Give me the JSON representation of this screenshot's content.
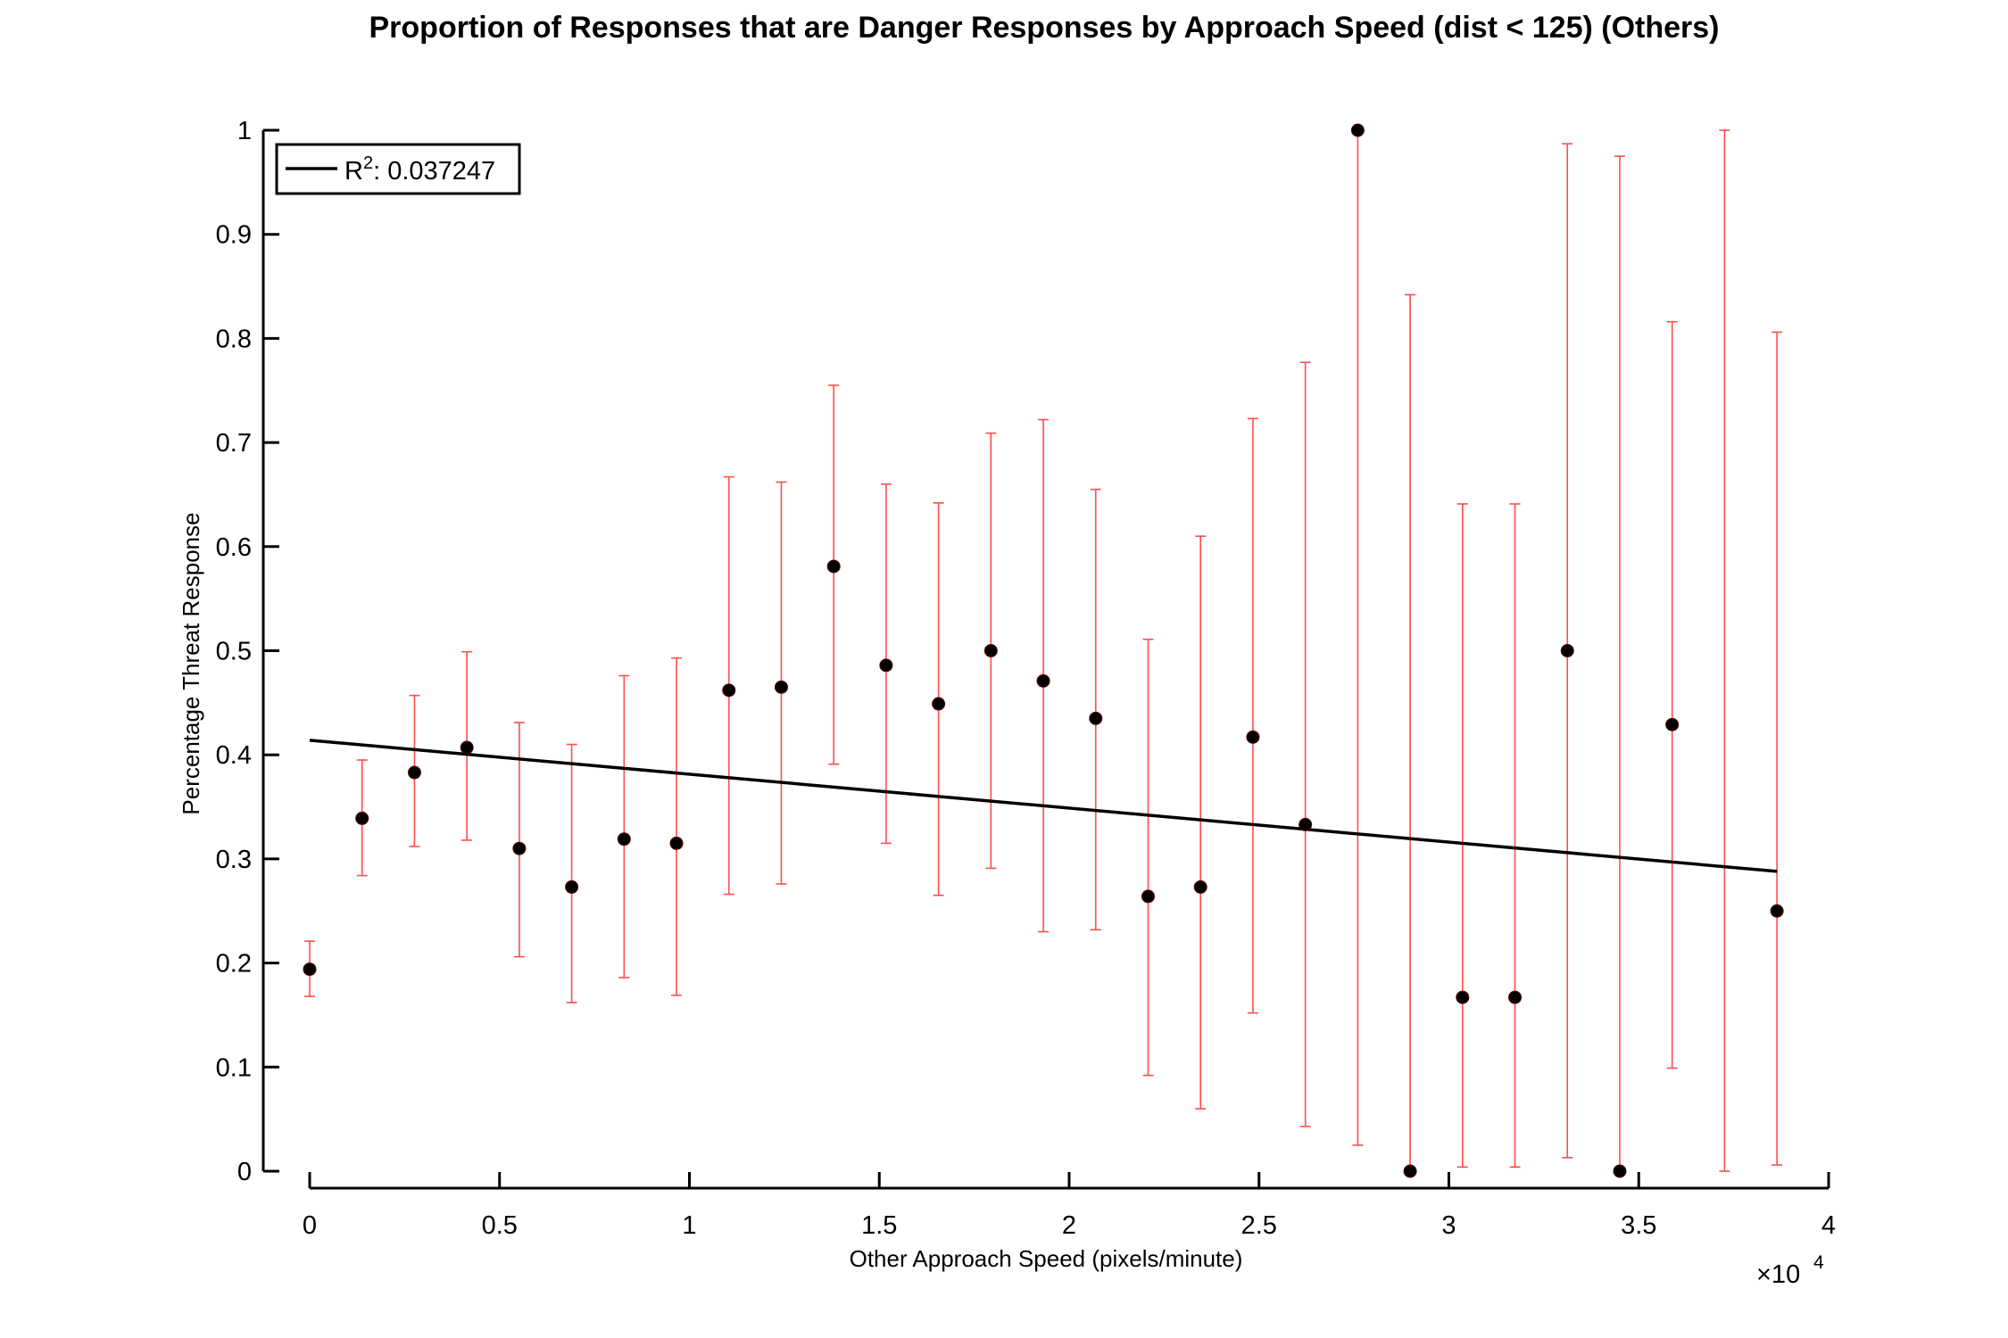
{
  "chart_data": {
    "type": "scatter",
    "title": "Proportion of Responses that are Danger Responses by Approach Speed (dist < 125) (Others)",
    "xlabel": "Other Approach Speed (pixels/minute)",
    "ylabel": "Percentage Threat Response",
    "x_exponent_label": "×10",
    "x_exponent_power": "4",
    "x_scale_factor": 10000,
    "xlim": [
      0,
      40000
    ],
    "ylim": [
      0,
      1
    ],
    "x_ticks": [
      0,
      5000,
      10000,
      15000,
      20000,
      25000,
      30000,
      35000,
      40000
    ],
    "x_tick_labels": [
      "0",
      "0.5",
      "1",
      "1.5",
      "2",
      "2.5",
      "3",
      "3.5",
      "4"
    ],
    "y_ticks": [
      0,
      0.1,
      0.2,
      0.3,
      0.4,
      0.5,
      0.6,
      0.7,
      0.8,
      0.9,
      1
    ],
    "y_tick_labels": [
      "0",
      "0.1",
      "0.2",
      "0.3",
      "0.4",
      "0.5",
      "0.6",
      "0.7",
      "0.8",
      "0.9",
      "1"
    ],
    "grid": false,
    "legend": {
      "placement": "top-left",
      "label_prefix": "R",
      "label_sup": "2",
      "label_value": ": 0.037247"
    },
    "colors": {
      "points": "#000000",
      "errorbars": "#ff4d4d",
      "fit_line": "#000000"
    },
    "points": [
      {
        "x": 0,
        "y": 0.194,
        "lo": 0.168,
        "hi": 0.221
      },
      {
        "x": 1380,
        "y": 0.339,
        "lo": 0.284,
        "hi": 0.395
      },
      {
        "x": 2760,
        "y": 0.383,
        "lo": 0.312,
        "hi": 0.457
      },
      {
        "x": 4140,
        "y": 0.407,
        "lo": 0.318,
        "hi": 0.499
      },
      {
        "x": 5520,
        "y": 0.31,
        "lo": 0.206,
        "hi": 0.431
      },
      {
        "x": 6900,
        "y": 0.273,
        "lo": 0.162,
        "hi": 0.41
      },
      {
        "x": 8280,
        "y": 0.319,
        "lo": 0.186,
        "hi": 0.476
      },
      {
        "x": 9660,
        "y": 0.315,
        "lo": 0.169,
        "hi": 0.493
      },
      {
        "x": 11040,
        "y": 0.462,
        "lo": 0.266,
        "hi": 0.667
      },
      {
        "x": 12420,
        "y": 0.465,
        "lo": 0.276,
        "hi": 0.662
      },
      {
        "x": 13800,
        "y": 0.581,
        "lo": 0.391,
        "hi": 0.755
      },
      {
        "x": 15180,
        "y": 0.486,
        "lo": 0.315,
        "hi": 0.66
      },
      {
        "x": 16560,
        "y": 0.449,
        "lo": 0.265,
        "hi": 0.642
      },
      {
        "x": 17940,
        "y": 0.5,
        "lo": 0.291,
        "hi": 0.709
      },
      {
        "x": 19320,
        "y": 0.471,
        "lo": 0.23,
        "hi": 0.722
      },
      {
        "x": 20700,
        "y": 0.435,
        "lo": 0.232,
        "hi": 0.655
      },
      {
        "x": 22080,
        "y": 0.264,
        "lo": 0.092,
        "hi": 0.511
      },
      {
        "x": 23460,
        "y": 0.273,
        "lo": 0.06,
        "hi": 0.61
      },
      {
        "x": 24840,
        "y": 0.417,
        "lo": 0.152,
        "hi": 0.723
      },
      {
        "x": 26220,
        "y": 0.333,
        "lo": 0.043,
        "hi": 0.777
      },
      {
        "x": 27600,
        "y": 1.0,
        "lo": 0.025,
        "hi": 1.0
      },
      {
        "x": 28980,
        "y": 0.0,
        "lo": 0.0,
        "hi": 0.842
      },
      {
        "x": 30360,
        "y": 0.167,
        "lo": 0.004,
        "hi": 0.641
      },
      {
        "x": 31740,
        "y": 0.167,
        "lo": 0.004,
        "hi": 0.641
      },
      {
        "x": 33120,
        "y": 0.5,
        "lo": 0.013,
        "hi": 0.987
      },
      {
        "x": 34500,
        "y": 0.0,
        "lo": 0.0,
        "hi": 0.975
      },
      {
        "x": 35880,
        "y": 0.429,
        "lo": 0.099,
        "hi": 0.816
      },
      {
        "x": 37260,
        "y": null,
        "lo": 0.0,
        "hi": 1.0
      },
      {
        "x": 38640,
        "y": 0.25,
        "lo": 0.006,
        "hi": 0.806
      }
    ],
    "fit_line": {
      "x": [
        0,
        38640
      ],
      "y": [
        0.414,
        0.288
      ]
    }
  }
}
